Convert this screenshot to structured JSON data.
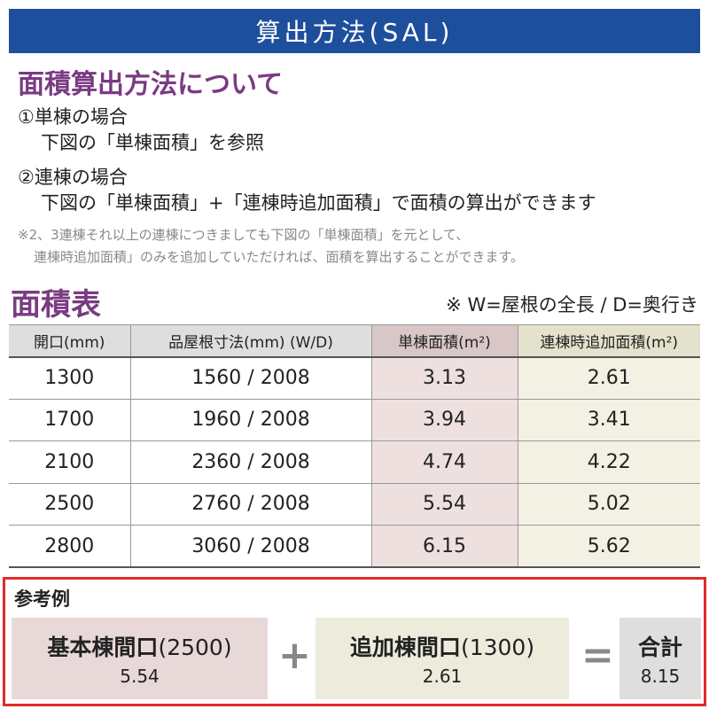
{
  "banner": "算出方法(SAL)",
  "section_title": "面積算出方法について",
  "single": {
    "heading": "①単棟の場合",
    "body": "下図の「単棟面積」を参照"
  },
  "multi": {
    "heading": "②連棟の場合",
    "body": "下図の「単棟面積」+「連棟時追加面積」で面積の算出ができます"
  },
  "note": {
    "line1": "※2、3連棟それ以上の連棟につきましても下図の「単棟面積」を元として、",
    "line2": "連棟時追加面積」のみを追加していただければ、面積を算出することができます。"
  },
  "table_title": "面積表",
  "table_note": "※ W=屋根の全長 / D=奥行き",
  "table": {
    "headers": [
      "開口(mm)",
      "品屋根寸法(mm) (W/D)",
      "単棟面積(m²)",
      "連棟時追加面積(m²)"
    ],
    "rows": [
      [
        "1300",
        "1560 / 2008",
        "3.13",
        "2.61"
      ],
      [
        "1700",
        "1960 / 2008",
        "3.94",
        "3.41"
      ],
      [
        "2100",
        "2360 / 2008",
        "4.74",
        "4.22"
      ],
      [
        "2500",
        "2760 / 2008",
        "5.54",
        "5.02"
      ],
      [
        "2800",
        "3060 / 2008",
        "6.15",
        "5.62"
      ]
    ]
  },
  "example": {
    "label": "参考例",
    "base_name": "基本棟間口",
    "base_open": "(2500)",
    "base_value": "5.54",
    "plus": "+",
    "add_name": "追加棟間口",
    "add_open": "(1300)",
    "add_value": "2.61",
    "equals": "=",
    "total_name": "合計",
    "total_value": "8.15"
  },
  "colors": {
    "banner": "#1e4f9c",
    "title": "#7a3b82",
    "single_col": "#efe0e0",
    "add_col": "#f3f1e3",
    "frame": "#e12a2a"
  }
}
